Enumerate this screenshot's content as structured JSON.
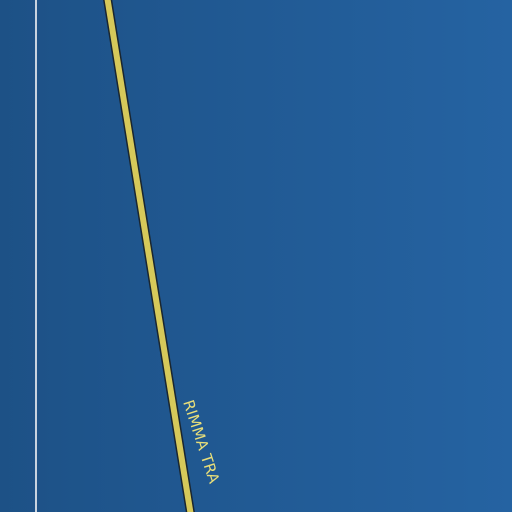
{
  "map": {
    "colors": {
      "water_dark": "#1d5186",
      "water_light": "#2563a2",
      "road_fill": "#d6c95a",
      "road_casing": "#1a2630",
      "boundary_line": "#c9d3e0",
      "label_color": "#e8de7a"
    },
    "roads": [
      {
        "label": "RIMMA TRA"
      }
    ]
  }
}
